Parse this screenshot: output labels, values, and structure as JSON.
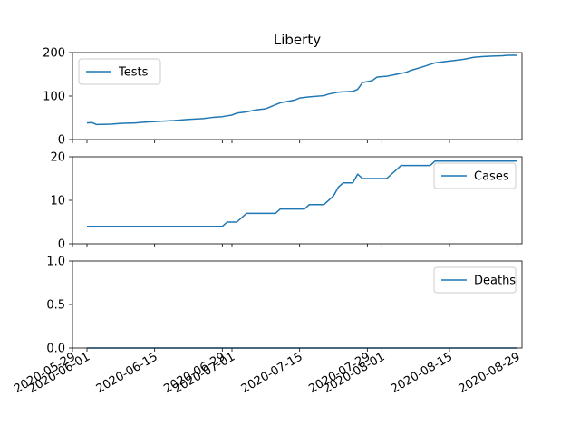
{
  "chart_data": {
    "type": "line",
    "title": "Liberty",
    "color": "#1f77b4",
    "x_ticks": [
      "2020-05-29",
      "2020-06-01",
      "2020-06-15",
      "2020-06-29",
      "2020-07-01",
      "2020-07-15",
      "2020-07-29",
      "2020-08-01",
      "2020-08-15",
      "2020-08-29"
    ],
    "x_range": [
      "2020-05-29",
      "2020-08-30"
    ],
    "panels": [
      {
        "series_name": "Tests",
        "legend_position": "upper-left",
        "ylim": [
          0,
          220
        ],
        "yticks": [
          "0",
          "100",
          "200"
        ],
        "points": [
          [
            "2020-06-01",
            42
          ],
          [
            "2020-06-02",
            43
          ],
          [
            "2020-06-03",
            38
          ],
          [
            "2020-06-06",
            39
          ],
          [
            "2020-06-08",
            41
          ],
          [
            "2020-06-11",
            42
          ],
          [
            "2020-06-13",
            44
          ],
          [
            "2020-06-16",
            46
          ],
          [
            "2020-06-19",
            48
          ],
          [
            "2020-06-22",
            51
          ],
          [
            "2020-06-25",
            53
          ],
          [
            "2020-06-27",
            56
          ],
          [
            "2020-06-29",
            58
          ],
          [
            "2020-07-01",
            62
          ],
          [
            "2020-07-02",
            67
          ],
          [
            "2020-07-04",
            70
          ],
          [
            "2020-07-06",
            75
          ],
          [
            "2020-07-08",
            78
          ],
          [
            "2020-07-10",
            88
          ],
          [
            "2020-07-11",
            93
          ],
          [
            "2020-07-14",
            100
          ],
          [
            "2020-07-15",
            105
          ],
          [
            "2020-07-17",
            108
          ],
          [
            "2020-07-20",
            111
          ],
          [
            "2020-07-21",
            115
          ],
          [
            "2020-07-23",
            120
          ],
          [
            "2020-07-26",
            122
          ],
          [
            "2020-07-27",
            127
          ],
          [
            "2020-07-28",
            144
          ],
          [
            "2020-07-30",
            149
          ],
          [
            "2020-07-31",
            158
          ],
          [
            "2020-08-02",
            160
          ],
          [
            "2020-08-04",
            165
          ],
          [
            "2020-08-06",
            170
          ],
          [
            "2020-08-07",
            175
          ],
          [
            "2020-08-09",
            182
          ],
          [
            "2020-08-11",
            190
          ],
          [
            "2020-08-12",
            194
          ],
          [
            "2020-08-14",
            197
          ],
          [
            "2020-08-16",
            200
          ],
          [
            "2020-08-18",
            203
          ],
          [
            "2020-08-20",
            208
          ],
          [
            "2020-08-22",
            210
          ],
          [
            "2020-08-24",
            211
          ],
          [
            "2020-08-26",
            212
          ],
          [
            "2020-08-27",
            213
          ],
          [
            "2020-08-29",
            213
          ]
        ]
      },
      {
        "series_name": "Cases",
        "legend_position": "upper-right",
        "ylim": [
          0,
          20
        ],
        "yticks": [
          "0",
          "10",
          "20"
        ],
        "points": [
          [
            "2020-06-01",
            4
          ],
          [
            "2020-06-29",
            4
          ],
          [
            "2020-06-30",
            5
          ],
          [
            "2020-07-02",
            5
          ],
          [
            "2020-07-04",
            7
          ],
          [
            "2020-07-10",
            7
          ],
          [
            "2020-07-11",
            8
          ],
          [
            "2020-07-16",
            8
          ],
          [
            "2020-07-17",
            9
          ],
          [
            "2020-07-20",
            9
          ],
          [
            "2020-07-22",
            11
          ],
          [
            "2020-07-23",
            13
          ],
          [
            "2020-07-24",
            14
          ],
          [
            "2020-07-26",
            14
          ],
          [
            "2020-07-27",
            16
          ],
          [
            "2020-07-28",
            15
          ],
          [
            "2020-08-02",
            15
          ],
          [
            "2020-08-05",
            18
          ],
          [
            "2020-08-11",
            18
          ],
          [
            "2020-08-12",
            19
          ],
          [
            "2020-08-29",
            19
          ]
        ]
      },
      {
        "series_name": "Deaths",
        "legend_position": "upper-right",
        "ylim": [
          0,
          1
        ],
        "yticks": [
          "0.0",
          "0.5",
          "1.0"
        ],
        "points": [
          [
            "2020-06-01",
            0
          ],
          [
            "2020-08-29",
            0
          ]
        ]
      }
    ]
  }
}
